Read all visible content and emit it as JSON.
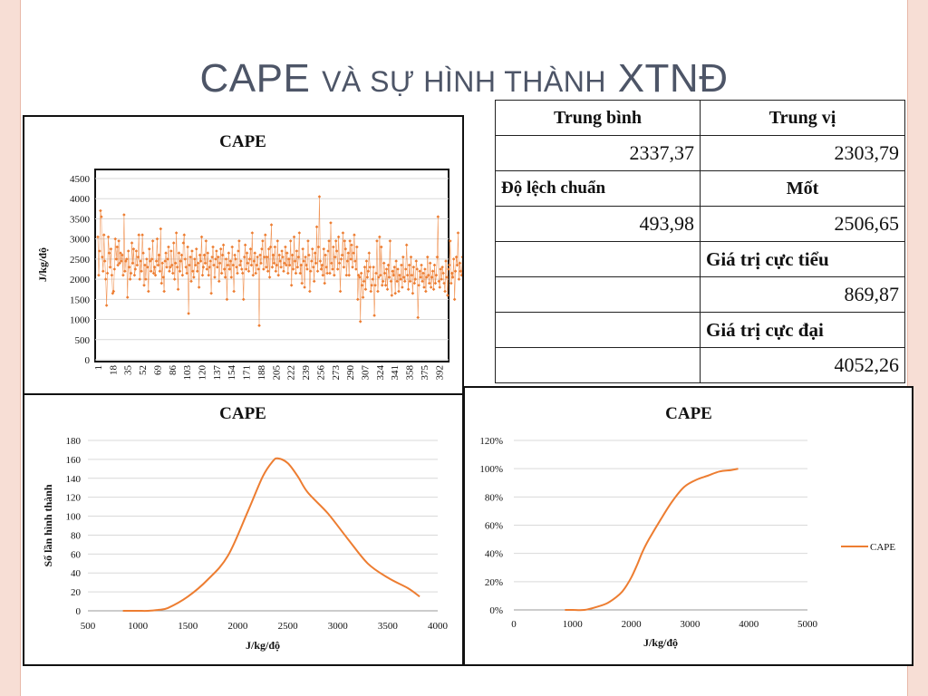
{
  "slide": {
    "title_big1": "CAPE",
    "title_small": "và sự hình thành",
    "title_big2": "XTNĐ"
  },
  "stats_table": {
    "rows": [
      [
        "Trung bình",
        "Trung vị"
      ],
      [
        "2337,37",
        "2303,79"
      ],
      [
        "Độ lệch chuẩn",
        "Mốt"
      ],
      [
        "493,98",
        "2506,65"
      ],
      [
        "",
        "Giá trị cực tiểu"
      ],
      [
        "",
        "869,87"
      ],
      [
        "",
        "Giá trị cực đại"
      ],
      [
        "",
        "4052,26"
      ]
    ]
  },
  "colors": {
    "series": "#ed7d31",
    "grid": "#d9d9d9",
    "axis": "#111111",
    "slide_border": "#f7ded5"
  },
  "chart_data": [
    {
      "type": "line",
      "marker": "diamond",
      "title": "CAPE",
      "ylabel": "J/kg/độ",
      "xlabel": "",
      "ylim": [
        0,
        4500
      ],
      "yticks": [
        0,
        500,
        1000,
        1500,
        2000,
        2500,
        3000,
        3500,
        4000,
        4500
      ],
      "xticks": [
        "1",
        "18",
        "35",
        "52",
        "69",
        "86",
        "103",
        "120",
        "137",
        "154",
        "171",
        "188",
        "205",
        "222",
        "239",
        "256",
        "273",
        "290",
        "307",
        "324",
        "341",
        "358",
        "375",
        "392"
      ],
      "x_count": 400,
      "grid": true,
      "values": [
        3050,
        2100,
        2700,
        3700,
        3550,
        2550,
        2200,
        3100,
        2450,
        2000,
        1350,
        2150,
        3050,
        2650,
        2300,
        2750,
        2100,
        1650,
        1700,
        2250,
        3000,
        2500,
        2800,
        2350,
        2950,
        2400,
        2650,
        2450,
        2600,
        2100,
        3600,
        2200,
        2450,
        2500,
        1550,
        2700,
        2300,
        2000,
        2150,
        2900,
        2400,
        2750,
        2100,
        2250,
        2700,
        2350,
        2550,
        3100,
        2000,
        2450,
        2200,
        3100,
        2650,
        1850,
        2350,
        2000,
        2500,
        2300,
        1700,
        2750,
        2450,
        2200,
        2500,
        2950,
        2150,
        2300,
        2100,
        2450,
        3000,
        2350,
        2600,
        2200,
        3250,
        1900,
        2400,
        2050,
        1700,
        2450,
        2650,
        2300,
        2500,
        2800,
        2200,
        2300,
        2700,
        2350,
        2150,
        2900,
        2000,
        2400,
        3150,
        2300,
        1750,
        2650,
        2200,
        2450,
        2600,
        2100,
        2900,
        3100,
        2500,
        2300,
        2150,
        2800,
        1150,
        2350,
        2550,
        1950,
        2700,
        2200,
        2050,
        2500,
        2350,
        2750,
        2200,
        2400,
        1800,
        2600,
        2450,
        3050,
        2100,
        2300,
        2600,
        2400,
        2950,
        2250,
        2650,
        2100,
        2300,
        2450,
        1650,
        2550,
        2800,
        2350,
        2050,
        2500,
        2700,
        2300,
        2550,
        1950,
        2400,
        2750,
        2150,
        2600,
        2850,
        2250,
        2050,
        2500,
        1500,
        2350,
        2650,
        2250,
        2450,
        2050,
        2800,
        2350,
        1700,
        2600,
        2500,
        2300,
        2150,
        2700,
        2950,
        2350,
        2450,
        2250,
        2150,
        1500,
        2550,
        2850,
        2250,
        2650,
        2400,
        2200,
        2500,
        2750,
        2350,
        3150,
        2100,
        2450,
        2650,
        2150,
        2350,
        2550,
        2250,
        850,
        2600,
        2400,
        2750,
        2950,
        2250,
        2550,
        3100,
        2300,
        2550,
        2200,
        2750,
        2050,
        2800,
        3350,
        2300,
        2600,
        2400,
        2800,
        2200,
        2350,
        2950,
        2100,
        2600,
        2450,
        2300,
        2700,
        2550,
        2200,
        2400,
        2800,
        2350,
        2650,
        2150,
        2500,
        2350,
        2950,
        1850,
        2600,
        2250,
        3050,
        2450,
        2150,
        2700,
        2300,
        2550,
        3150,
        2150,
        2350,
        1900,
        2750,
        2450,
        1800,
        2550,
        2350,
        2250,
        2950,
        2600,
        1700,
        2200,
        2450,
        2750,
        2300,
        1950,
        2650,
        2400,
        3300,
        2200,
        2800,
        4050,
        2450,
        2250,
        2350,
        2100,
        2750,
        1900,
        2600,
        2300,
        2150,
        2700,
        2950,
        2150,
        3400,
        2400,
        2250,
        2800,
        2100,
        2550,
        2950,
        2700,
        2250,
        3050,
        2400,
        1700,
        2500,
        2600,
        3150,
        2300,
        2950,
        2750,
        2100,
        2450,
        2650,
        2100,
        2950,
        2500,
        2850,
        2300,
        2650,
        3100,
        2450,
        2250,
        2800,
        1500,
        2100,
        2050,
        950,
        2150,
        1850,
        1550,
        1950,
        2300,
        1750,
        2450,
        2050,
        2200,
        2650,
        2300,
        1700,
        1850,
        2000,
        2300,
        1100,
        1850,
        2150,
        2950,
        1700,
        2050,
        3050,
        2100,
        2800,
        1850,
        1950,
        2400,
        2150,
        1850,
        2250,
        1750,
        2350,
        2050,
        2950,
        1950,
        1600,
        2200,
        2100,
        2300,
        1650,
        2450,
        1950,
        2250,
        1700,
        2100,
        2000,
        2350,
        1800,
        2550,
        2050,
        1950,
        2250,
        2850,
        2100,
        1750,
        2350,
        1950,
        2550,
        2100,
        1650,
        2300,
        1900,
        2000,
        2450,
        2250,
        1050,
        1850,
        2200,
        2050,
        2350,
        1950,
        2150,
        1800,
        2250,
        1700,
        2050,
        2550,
        2100,
        1900,
        2400,
        1800,
        2050,
        2200,
        1750,
        2350,
        1900,
        2100,
        2550,
        3550,
        1950,
        1800,
        2250,
        2000,
        2300,
        2150,
        1900,
        1700,
        2450,
        2050,
        1600,
        2250,
        2350,
        2950,
        1900,
        2150,
        2050,
        2500,
        1500,
        2200,
        2550,
        2350,
        3150,
        2000,
        2400,
        2200,
        2100,
        2550
      ]
    },
    {
      "type": "line",
      "title": "CAPE",
      "xlabel": "J/kg/độ",
      "ylabel": "Số lần hình thành",
      "xlim": [
        500,
        4000
      ],
      "ylim": [
        0,
        180
      ],
      "xticks": [
        500,
        1000,
        1500,
        2000,
        2500,
        3000,
        3500,
        4000
      ],
      "yticks": [
        0,
        20,
        40,
        60,
        80,
        100,
        120,
        140,
        160,
        180
      ],
      "grid": true,
      "x": [
        850,
        1000,
        1100,
        1200,
        1300,
        1500,
        1700,
        1900,
        2100,
        2250,
        2350,
        2400,
        2500,
        2600,
        2700,
        2900,
        3100,
        3300,
        3500,
        3700,
        3820
      ],
      "y": [
        0,
        0,
        0,
        1,
        3,
        15,
        33,
        58,
        105,
        142,
        158,
        161,
        156,
        142,
        125,
        103,
        76,
        50,
        35,
        24,
        15
      ]
    },
    {
      "type": "line",
      "title": "CAPE",
      "xlabel": "J/kg/độ",
      "ylabel": "",
      "xlim": [
        0,
        5000
      ],
      "ylim": [
        0,
        1.2
      ],
      "xticks": [
        0,
        1000,
        2000,
        3000,
        4000,
        5000
      ],
      "yticks": [
        "0%",
        "20%",
        "40%",
        "60%",
        "80%",
        "100%",
        "120%"
      ],
      "grid": true,
      "legend": "right",
      "series": [
        {
          "name": "CAPE",
          "x": [
            870,
            1000,
            1200,
            1400,
            1600,
            1800,
            1900,
            2000,
            2100,
            2200,
            2300,
            2500,
            2700,
            2900,
            3100,
            3300,
            3500,
            3700,
            3820
          ],
          "y": [
            0,
            0,
            0,
            0.02,
            0.05,
            0.11,
            0.16,
            0.23,
            0.32,
            0.42,
            0.5,
            0.64,
            0.77,
            0.87,
            0.92,
            0.95,
            0.98,
            0.99,
            1.0
          ]
        }
      ]
    }
  ]
}
